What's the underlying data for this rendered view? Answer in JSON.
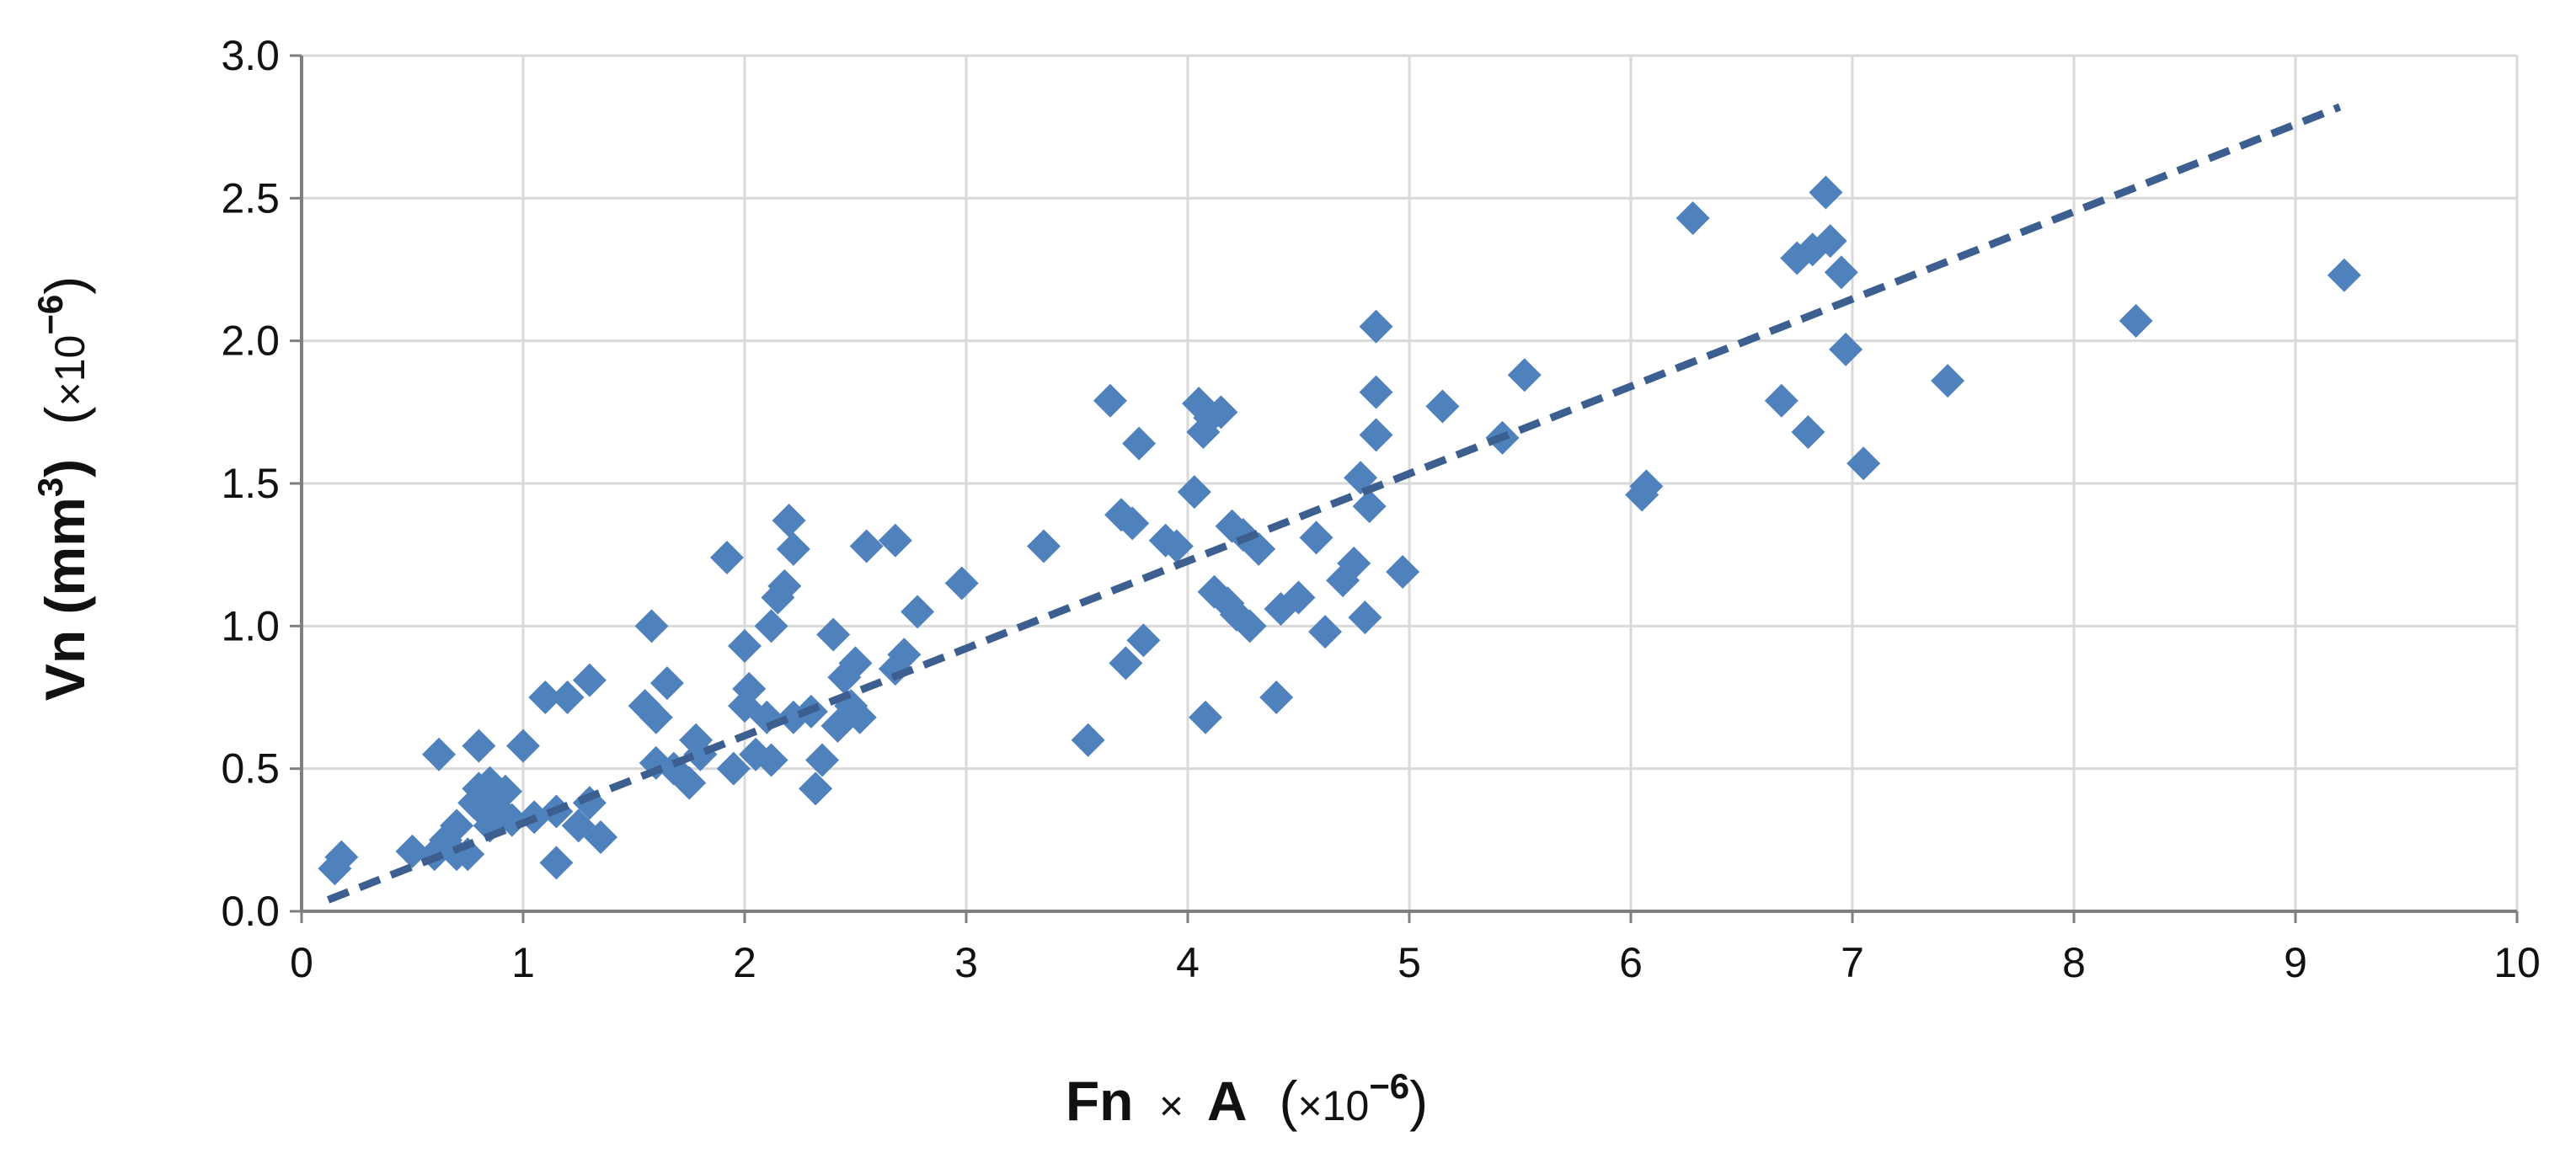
{
  "colors": {
    "marker": "#4f81bd",
    "trendline": "#3d5f8f",
    "grid": "#d9d9d9",
    "axis": "#7f7f7f"
  },
  "chart_data": {
    "type": "scatter",
    "xlabel": {
      "main": "Fn",
      "times": "×",
      "var": "A",
      "open": "(",
      "scale": "×10",
      "exp": "−6",
      "close": ")"
    },
    "ylabel": {
      "main": "Vn (mm",
      "cube": "3",
      "unit_close": ")",
      "open": "(",
      "scale": "×10",
      "exp": "−6",
      "close": ")"
    },
    "xlim": [
      0,
      10
    ],
    "ylim": [
      0,
      3.0
    ],
    "xticks": [
      "0",
      "1",
      "2",
      "3",
      "4",
      "5",
      "6",
      "7",
      "8",
      "9",
      "10"
    ],
    "yticks": [
      "0.0",
      "0.5",
      "1.0",
      "1.5",
      "2.0",
      "2.5",
      "3.0"
    ],
    "grid": true,
    "legend": "none",
    "marker": "diamond",
    "trendline": {
      "type": "linear",
      "style": "dashed",
      "x": [
        0.12,
        9.2
      ],
      "y": [
        0.04,
        2.82
      ]
    },
    "points": [
      [
        0.15,
        0.15
      ],
      [
        0.18,
        0.19
      ],
      [
        0.5,
        0.21
      ],
      [
        0.6,
        0.2
      ],
      [
        0.62,
        0.55
      ],
      [
        0.65,
        0.25
      ],
      [
        0.7,
        0.3
      ],
      [
        0.7,
        0.2
      ],
      [
        0.75,
        0.2
      ],
      [
        0.78,
        0.38
      ],
      [
        0.8,
        0.43
      ],
      [
        0.8,
        0.58
      ],
      [
        0.82,
        0.35
      ],
      [
        0.85,
        0.45
      ],
      [
        0.85,
        0.3
      ],
      [
        0.88,
        0.4
      ],
      [
        0.9,
        0.35
      ],
      [
        0.92,
        0.42
      ],
      [
        0.95,
        0.32
      ],
      [
        1.0,
        0.58
      ],
      [
        1.05,
        0.33
      ],
      [
        1.1,
        0.75
      ],
      [
        1.15,
        0.17
      ],
      [
        1.15,
        0.35
      ],
      [
        1.2,
        0.75
      ],
      [
        1.25,
        0.3
      ],
      [
        1.3,
        0.38
      ],
      [
        1.3,
        0.81
      ],
      [
        1.35,
        0.26
      ],
      [
        1.55,
        0.72
      ],
      [
        1.58,
        1.0
      ],
      [
        1.6,
        0.52
      ],
      [
        1.6,
        0.68
      ],
      [
        1.65,
        0.8
      ],
      [
        1.68,
        0.5
      ],
      [
        1.75,
        0.45
      ],
      [
        1.78,
        0.6
      ],
      [
        1.8,
        0.55
      ],
      [
        1.92,
        1.24
      ],
      [
        1.95,
        0.5
      ],
      [
        2.0,
        0.72
      ],
      [
        2.0,
        0.93
      ],
      [
        2.02,
        0.78
      ],
      [
        2.05,
        0.55
      ],
      [
        2.1,
        0.68
      ],
      [
        2.12,
        1.0
      ],
      [
        2.12,
        0.53
      ],
      [
        2.15,
        1.1
      ],
      [
        2.18,
        1.14
      ],
      [
        2.2,
        1.37
      ],
      [
        2.22,
        1.27
      ],
      [
        2.22,
        0.68
      ],
      [
        2.3,
        0.7
      ],
      [
        2.32,
        0.43
      ],
      [
        2.35,
        0.53
      ],
      [
        2.4,
        0.97
      ],
      [
        2.42,
        0.65
      ],
      [
        2.45,
        0.82
      ],
      [
        2.48,
        0.72
      ],
      [
        2.5,
        0.87
      ],
      [
        2.52,
        0.68
      ],
      [
        2.55,
        1.28
      ],
      [
        2.68,
        1.3
      ],
      [
        2.68,
        0.85
      ],
      [
        2.72,
        0.9
      ],
      [
        2.78,
        1.05
      ],
      [
        2.98,
        1.15
      ],
      [
        3.35,
        1.28
      ],
      [
        3.55,
        0.6
      ],
      [
        3.65,
        1.79
      ],
      [
        3.7,
        1.39
      ],
      [
        3.72,
        0.87
      ],
      [
        3.75,
        1.36
      ],
      [
        3.78,
        1.64
      ],
      [
        3.8,
        0.95
      ],
      [
        3.9,
        1.3
      ],
      [
        3.95,
        1.28
      ],
      [
        4.03,
        1.47
      ],
      [
        4.05,
        1.78
      ],
      [
        4.07,
        1.68
      ],
      [
        4.08,
        0.68
      ],
      [
        4.1,
        1.73
      ],
      [
        4.12,
        1.12
      ],
      [
        4.15,
        1.75
      ],
      [
        4.18,
        1.08
      ],
      [
        4.2,
        1.35
      ],
      [
        4.22,
        1.04
      ],
      [
        4.25,
        1.32
      ],
      [
        4.28,
        1.0
      ],
      [
        4.32,
        1.27
      ],
      [
        4.4,
        0.75
      ],
      [
        4.42,
        1.06
      ],
      [
        4.5,
        1.1
      ],
      [
        4.58,
        1.31
      ],
      [
        4.62,
        0.98
      ],
      [
        4.7,
        1.16
      ],
      [
        4.75,
        1.22
      ],
      [
        4.78,
        1.52
      ],
      [
        4.8,
        1.03
      ],
      [
        4.82,
        1.42
      ],
      [
        4.85,
        2.05
      ],
      [
        4.85,
        1.67
      ],
      [
        4.85,
        1.82
      ],
      [
        4.97,
        1.19
      ],
      [
        5.15,
        1.77
      ],
      [
        5.42,
        1.66
      ],
      [
        5.52,
        1.88
      ],
      [
        6.05,
        1.46
      ],
      [
        6.07,
        1.49
      ],
      [
        6.28,
        2.43
      ],
      [
        6.68,
        1.79
      ],
      [
        6.75,
        2.29
      ],
      [
        6.8,
        1.68
      ],
      [
        6.82,
        2.32
      ],
      [
        6.88,
        2.52
      ],
      [
        6.9,
        2.35
      ],
      [
        6.95,
        2.24
      ],
      [
        6.97,
        1.97
      ],
      [
        7.05,
        1.57
      ],
      [
        7.43,
        1.86
      ],
      [
        8.28,
        2.07
      ],
      [
        9.22,
        2.23
      ]
    ]
  }
}
